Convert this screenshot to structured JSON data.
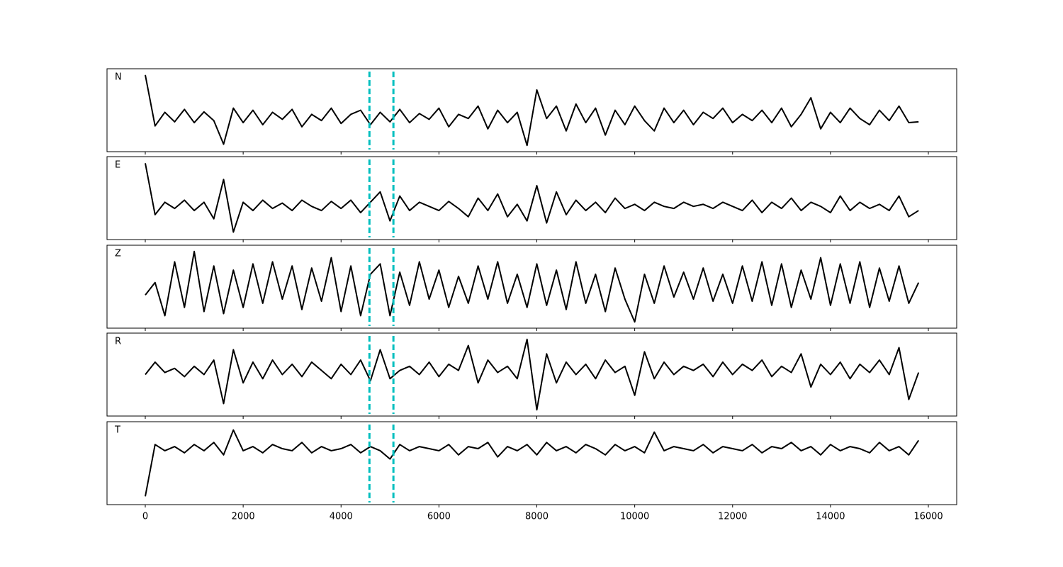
{
  "chart_data": {
    "type": "line",
    "x": [
      0,
      200,
      400,
      600,
      800,
      1000,
      1200,
      1400,
      1600,
      1800,
      2000,
      2200,
      2400,
      2600,
      2800,
      3000,
      3200,
      3400,
      3600,
      3800,
      4000,
      4200,
      4400,
      4600,
      4800,
      5000,
      5200,
      5400,
      5600,
      5800,
      6000,
      6200,
      6400,
      6600,
      6800,
      7000,
      7200,
      7400,
      7600,
      7800,
      8000,
      8200,
      8400,
      8600,
      8800,
      9000,
      9200,
      9400,
      9600,
      9800,
      10000,
      10200,
      10400,
      10600,
      10800,
      11000,
      11200,
      11400,
      11600,
      11800,
      12000,
      12200,
      12400,
      12600,
      12800,
      13000,
      13200,
      13400,
      13600,
      13800,
      14000,
      14200,
      14400,
      14600,
      14800,
      15000,
      15200,
      15400,
      15600,
      15800
    ],
    "xlim": [
      -782,
      16579
    ],
    "xticks": [
      0,
      2000,
      4000,
      6000,
      8000,
      10000,
      12000,
      14000,
      16000
    ],
    "ylim": [
      -1,
      1
    ],
    "vlines": [
      4580,
      5070
    ],
    "vline_color": "#00bfbf",
    "series": [
      {
        "name": "N",
        "color": "#000000",
        "values": [
          0.85,
          -0.38,
          -0.05,
          -0.28,
          0.02,
          -0.3,
          -0.04,
          -0.25,
          -0.82,
          0.05,
          -0.3,
          0.0,
          -0.35,
          -0.05,
          -0.22,
          0.02,
          -0.4,
          -0.1,
          -0.25,
          0.05,
          -0.32,
          -0.1,
          0.0,
          -0.35,
          -0.05,
          -0.28,
          0.02,
          -0.3,
          -0.08,
          -0.22,
          0.05,
          -0.4,
          -0.1,
          -0.2,
          0.1,
          -0.45,
          0.0,
          -0.3,
          -0.05,
          -0.85,
          0.49,
          -0.2,
          0.1,
          -0.5,
          0.15,
          -0.3,
          0.05,
          -0.6,
          0.0,
          -0.35,
          0.1,
          -0.25,
          -0.5,
          0.05,
          -0.3,
          0.0,
          -0.35,
          -0.05,
          -0.2,
          0.05,
          -0.3,
          -0.1,
          -0.25,
          0.0,
          -0.3,
          0.05,
          -0.4,
          -0.1,
          0.3,
          -0.45,
          -0.05,
          -0.3,
          0.05,
          -0.2,
          -0.35,
          0.0,
          -0.25,
          0.1,
          -0.3,
          -0.28
        ]
      },
      {
        "name": "E",
        "color": "#000000",
        "values": [
          0.84,
          -0.4,
          -0.1,
          -0.25,
          -0.05,
          -0.3,
          -0.1,
          -0.5,
          0.45,
          -0.82,
          -0.1,
          -0.3,
          -0.05,
          -0.25,
          -0.12,
          -0.3,
          -0.05,
          -0.2,
          -0.3,
          -0.08,
          -0.25,
          -0.05,
          -0.35,
          -0.1,
          0.15,
          -0.55,
          0.05,
          -0.3,
          -0.1,
          -0.2,
          -0.3,
          -0.08,
          -0.25,
          -0.45,
          0.0,
          -0.3,
          0.1,
          -0.45,
          -0.15,
          -0.55,
          0.3,
          -0.6,
          0.15,
          -0.4,
          -0.05,
          -0.3,
          -0.1,
          -0.35,
          0.0,
          -0.25,
          -0.15,
          -0.3,
          -0.1,
          -0.2,
          -0.25,
          -0.1,
          -0.2,
          -0.15,
          -0.25,
          -0.1,
          -0.2,
          -0.3,
          -0.05,
          -0.35,
          -0.1,
          -0.25,
          0.0,
          -0.3,
          -0.1,
          -0.2,
          -0.35,
          0.05,
          -0.3,
          -0.1,
          -0.25,
          -0.15,
          -0.3,
          0.05,
          -0.45,
          -0.3
        ]
      },
      {
        "name": "Z",
        "color": "#000000",
        "values": [
          -0.2,
          0.1,
          -0.7,
          0.6,
          -0.5,
          0.85,
          -0.6,
          0.5,
          -0.65,
          0.4,
          -0.5,
          0.55,
          -0.4,
          0.6,
          -0.3,
          0.5,
          -0.55,
          0.45,
          -0.35,
          0.7,
          -0.6,
          0.5,
          -0.7,
          0.3,
          0.55,
          -0.7,
          0.35,
          -0.45,
          0.6,
          -0.3,
          0.4,
          -0.5,
          0.25,
          -0.4,
          0.5,
          -0.3,
          0.6,
          -0.4,
          0.3,
          -0.5,
          0.55,
          -0.45,
          0.4,
          -0.55,
          0.6,
          -0.4,
          0.3,
          -0.6,
          0.45,
          -0.3,
          -0.85,
          0.3,
          -0.4,
          0.5,
          -0.25,
          0.35,
          -0.3,
          0.45,
          -0.35,
          0.3,
          -0.4,
          0.5,
          -0.35,
          0.6,
          -0.45,
          0.55,
          -0.5,
          0.4,
          -0.3,
          0.7,
          -0.45,
          0.55,
          -0.4,
          0.6,
          -0.5,
          0.45,
          -0.35,
          0.5,
          -0.4,
          0.1
        ]
      },
      {
        "name": "R",
        "color": "#000000",
        "values": [
          0.0,
          0.3,
          0.05,
          0.15,
          -0.05,
          0.2,
          0.0,
          0.35,
          -0.7,
          0.6,
          -0.2,
          0.3,
          -0.1,
          0.35,
          0.0,
          0.25,
          -0.05,
          0.3,
          0.1,
          -0.1,
          0.25,
          0.0,
          0.35,
          -0.15,
          0.6,
          -0.1,
          0.1,
          0.2,
          0.0,
          0.3,
          -0.05,
          0.25,
          0.1,
          0.7,
          -0.2,
          0.35,
          0.05,
          0.2,
          -0.1,
          0.85,
          -0.85,
          0.5,
          -0.2,
          0.3,
          0.0,
          0.25,
          -0.1,
          0.35,
          0.05,
          0.2,
          -0.5,
          0.55,
          -0.1,
          0.3,
          0.0,
          0.2,
          0.1,
          0.25,
          -0.05,
          0.3,
          0.0,
          0.25,
          0.1,
          0.35,
          -0.05,
          0.2,
          0.05,
          0.5,
          -0.3,
          0.25,
          0.0,
          0.3,
          -0.1,
          0.25,
          0.05,
          0.35,
          0.0,
          0.65,
          -0.6,
          0.05
        ]
      },
      {
        "name": "T",
        "color": "#000000",
        "values": [
          -0.8,
          0.45,
          0.3,
          0.4,
          0.25,
          0.45,
          0.3,
          0.5,
          0.2,
          0.8,
          0.3,
          0.4,
          0.25,
          0.45,
          0.35,
          0.3,
          0.5,
          0.25,
          0.4,
          0.3,
          0.35,
          0.45,
          0.25,
          0.4,
          0.3,
          0.1,
          0.45,
          0.3,
          0.4,
          0.35,
          0.3,
          0.45,
          0.2,
          0.4,
          0.35,
          0.5,
          0.15,
          0.4,
          0.3,
          0.45,
          0.2,
          0.5,
          0.3,
          0.4,
          0.25,
          0.45,
          0.35,
          0.2,
          0.45,
          0.3,
          0.4,
          0.25,
          0.75,
          0.3,
          0.4,
          0.35,
          0.3,
          0.45,
          0.25,
          0.4,
          0.35,
          0.3,
          0.45,
          0.25,
          0.4,
          0.35,
          0.5,
          0.3,
          0.4,
          0.2,
          0.45,
          0.3,
          0.4,
          0.35,
          0.25,
          0.5,
          0.3,
          0.4,
          0.2,
          0.55
        ]
      }
    ]
  }
}
